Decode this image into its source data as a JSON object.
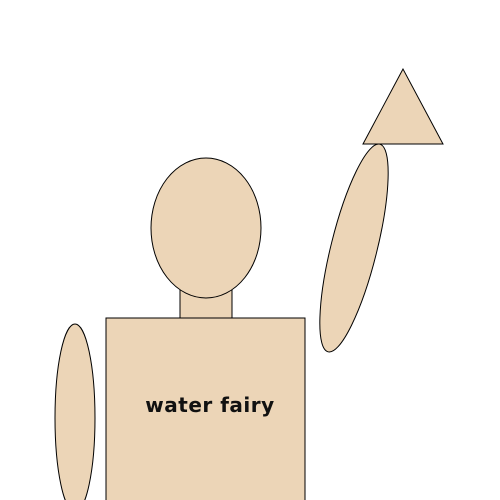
{
  "figure": {
    "shirt_text": "water fairy",
    "colors": {
      "skin": "#ecd5b7",
      "outline": "#000000",
      "text": "#111111",
      "background": "#ffffff"
    }
  }
}
